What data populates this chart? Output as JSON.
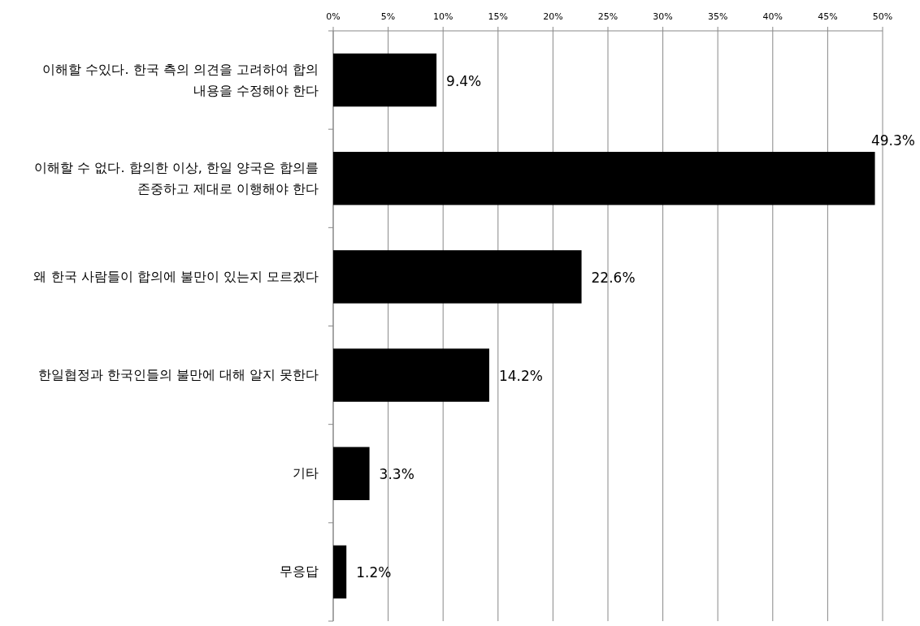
{
  "chart_data": {
    "type": "bar",
    "orientation": "horizontal",
    "categories": [
      "이해할 수있다. 한국 측의 의견을 고려하여 합의 내용을 수정해야 한다",
      "이해할 수 없다. 합의한 이상, 한일 양국은 합의를 존중하고 제대로 이행해야 한다",
      "왜 한국 사람들이 합의에 불만이 있는지 모르겠다",
      "한일협정과 한국인들의 불만에 대해 알지 못한다",
      "기타",
      "무응답"
    ],
    "values": [
      9.4,
      49.3,
      22.6,
      14.2,
      3.3,
      1.2
    ],
    "color": "#000000",
    "xlim": [
      0,
      50
    ],
    "xticks": [
      {
        "value": 0,
        "label": "0%"
      },
      {
        "value": 5,
        "label": "5%"
      },
      {
        "value": 10,
        "label": "10%"
      },
      {
        "value": 15,
        "label": "15%"
      },
      {
        "value": 20,
        "label": "20%"
      },
      {
        "value": 25,
        "label": "25%"
      },
      {
        "value": 30,
        "label": "30%"
      },
      {
        "value": 35,
        "label": "35%"
      },
      {
        "value": 40,
        "label": "40%"
      },
      {
        "value": 45,
        "label": "45%"
      },
      {
        "value": 50,
        "label": "50%"
      }
    ],
    "value_labels": [
      "9.4%",
      "49.3%",
      "22.6%",
      "14.2%",
      "3.3%",
      "1.2%"
    ],
    "grid": "x"
  }
}
